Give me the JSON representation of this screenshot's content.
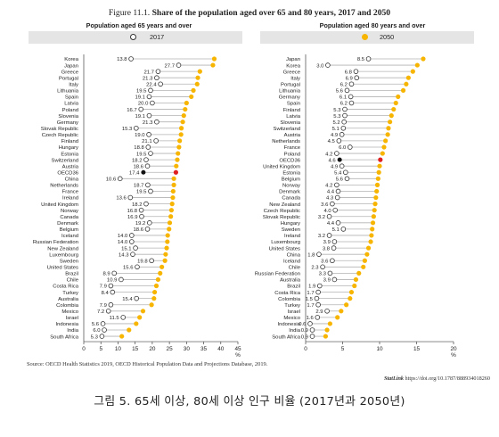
{
  "figure": {
    "title_prefix": "Figure 11.1.",
    "title_bold": "Share of the population aged over 65 and 80 years, 2017 and 2050",
    "source": "Source: OECD Health Statistics 2019, OECD Historical Population Data and Projections Database, 2019.",
    "statlink_label": "StatLink",
    "statlink_url": "https://doi.org/10.1787/888934018260",
    "caption": "그림 5. 65세 이상, 80세 이상 인구 비율 (2017년과 2050년)"
  },
  "colors": {
    "marker_2050": "#f7b500",
    "marker_2017_fill": "#ffffff",
    "marker_2017_stroke": "#333333",
    "oecd_2017": "#111111",
    "oecd_2050": "#e02020",
    "connector": "#b3b3b3",
    "legend_bg": "#e5e5e5"
  },
  "legend": {
    "label_2017": "2017",
    "label_2050": "2050"
  },
  "chart_data": [
    {
      "type": "dot-range",
      "title": "Population aged 65 years and over",
      "xlim": [
        0,
        45
      ],
      "xticks": [
        0,
        5,
        10,
        15,
        20,
        25,
        30,
        35,
        40,
        45
      ],
      "xunit": "%",
      "highlight": "OECD36",
      "categories": [
        "Korea",
        "Japan",
        "Greece",
        "Portugal",
        "Italy",
        "Lithuania",
        "Spain",
        "Latvia",
        "Poland",
        "Slovenia",
        "Germany",
        "Slovak Republic",
        "Czech Republic",
        "Finland",
        "Hungary",
        "Estonia",
        "Switzerland",
        "Austria",
        "OECD36",
        "China",
        "Netherlands",
        "France",
        "Ireland",
        "United Kingdom",
        "Norway",
        "Canada",
        "Denmark",
        "Belgium",
        "Iceland",
        "Russian Federation",
        "New Zealand",
        "Luxembourg",
        "Sweden",
        "United States",
        "Brazil",
        "Chile",
        "Costa Rica",
        "Turkey",
        "Australia",
        "Colombia",
        "Mexico",
        "Israel",
        "Indonesia",
        "India",
        "South Africa"
      ],
      "series": [
        {
          "name": "2017",
          "labeled": true,
          "values": [
            13.8,
            27.7,
            21.7,
            21.3,
            22.4,
            19.5,
            19.1,
            20.0,
            16.7,
            19.1,
            21.3,
            15.3,
            19.0,
            21.1,
            18.8,
            19.5,
            18.2,
            18.6,
            17.4,
            10.6,
            18.7,
            19.5,
            13.6,
            18.2,
            16.8,
            16.9,
            19.2,
            18.6,
            14.0,
            14.0,
            15.1,
            14.3,
            19.8,
            15.6,
            8.9,
            10.9,
            7.9,
            8.4,
            15.4,
            7.9,
            7.2,
            11.5,
            5.6,
            6.0,
            5.3
          ]
        },
        {
          "name": "2050",
          "labeled": false,
          "values": [
            38.1,
            37.7,
            33.9,
            33.3,
            33.1,
            32.0,
            31.4,
            30.0,
            29.6,
            29.2,
            28.9,
            28.5,
            28.4,
            28.0,
            27.8,
            27.5,
            27.3,
            27.0,
            26.9,
            26.3,
            26.3,
            26.1,
            26.0,
            25.8,
            25.6,
            25.4,
            25.1,
            24.9,
            24.5,
            24.4,
            24.2,
            23.9,
            23.7,
            22.8,
            22.3,
            21.7,
            21.2,
            20.7,
            20.5,
            19.8,
            17.3,
            16.3,
            15.3,
            13.2,
            11.1
          ]
        }
      ]
    },
    {
      "type": "dot-range",
      "title": "Population aged 80 years and over",
      "xlim": [
        0,
        20
      ],
      "xticks": [
        0,
        5,
        10,
        15,
        20
      ],
      "xunit": "%",
      "highlight": "OECD36",
      "categories": [
        "Japan",
        "Korea",
        "Greece",
        "Italy",
        "Portugal",
        "Lithuania",
        "Germany",
        "Spain",
        "Finland",
        "Latvia",
        "Slovenia",
        "Switzerland",
        "Austria",
        "Netherlands",
        "France",
        "Poland",
        "OECD36",
        "United Kingdom",
        "Estonia",
        "Belgium",
        "Norway",
        "Denmark",
        "Canada",
        "New Zealand",
        "Czech Republic",
        "Slovak Republic",
        "Hungary",
        "Sweden",
        "Ireland",
        "Luxembourg",
        "United States",
        "China",
        "Iceland",
        "Chile",
        "Russian Federation",
        "Australia",
        "Brazil",
        "Costa Rica",
        "Colombia",
        "Turkey",
        "Israel",
        "Mexico",
        "Indonesia",
        "India",
        "South Africa"
      ],
      "series": [
        {
          "name": "2017",
          "labeled": true,
          "values": [
            8.5,
            3.0,
            6.8,
            6.9,
            6.2,
            5.6,
            6.1,
            6.2,
            5.3,
            5.3,
            5.2,
            5.1,
            4.9,
            4.5,
            6.0,
            4.2,
            4.6,
            4.9,
            5.4,
            5.6,
            4.2,
            4.4,
            4.3,
            3.6,
            4.0,
            3.2,
            4.4,
            5.1,
            3.2,
            3.9,
            3.8,
            1.8,
            3.6,
            2.3,
            3.3,
            3.9,
            1.9,
            1.7,
            1.5,
            1.7,
            2.9,
            1.6,
            0.6,
            0.9,
            0.9
          ]
        },
        {
          "name": "2050",
          "labeled": false,
          "values": [
            15.9,
            15.1,
            14.5,
            13.9,
            13.6,
            13.2,
            12.5,
            12.2,
            11.9,
            11.6,
            11.4,
            11.2,
            11.1,
            10.8,
            10.6,
            10.4,
            10.1,
            10.0,
            9.9,
            9.8,
            9.7,
            9.6,
            9.5,
            9.4,
            9.3,
            9.2,
            9.1,
            9.0,
            8.9,
            8.8,
            8.5,
            8.3,
            8.0,
            7.8,
            7.2,
            6.8,
            6.6,
            6.2,
            6.0,
            5.5,
            4.8,
            4.3,
            3.3,
            2.9,
            2.7
          ]
        }
      ]
    }
  ]
}
